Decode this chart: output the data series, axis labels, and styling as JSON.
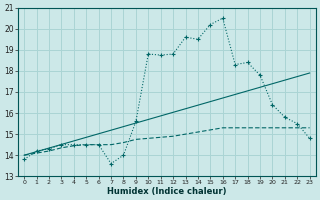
{
  "xlabel": "Humidex (Indice chaleur)",
  "bg_color": "#cce8e8",
  "grid_color": "#aad4d4",
  "line_color": "#006666",
  "xlim": [
    -0.5,
    23.5
  ],
  "ylim": [
    13,
    21
  ],
  "xticks": [
    0,
    1,
    2,
    3,
    4,
    5,
    6,
    7,
    8,
    9,
    10,
    11,
    12,
    13,
    14,
    15,
    16,
    17,
    18,
    19,
    20,
    21,
    22,
    23
  ],
  "yticks": [
    13,
    14,
    15,
    16,
    17,
    18,
    19,
    20,
    21
  ],
  "line1_x": [
    0,
    1,
    2,
    3,
    4,
    5,
    6,
    7,
    8,
    9,
    10,
    11,
    12,
    13,
    14,
    15,
    16,
    17,
    18,
    19,
    20,
    21,
    22,
    23
  ],
  "line1_y": [
    13.8,
    14.2,
    14.3,
    14.5,
    14.5,
    14.5,
    14.5,
    13.6,
    14.0,
    15.6,
    18.8,
    18.75,
    18.8,
    19.6,
    19.5,
    20.2,
    20.5,
    18.3,
    18.4,
    17.8,
    16.4,
    15.8,
    15.5,
    14.8
  ],
  "line2_x": [
    0,
    23
  ],
  "line2_y": [
    14.0,
    17.9
  ],
  "line3_x": [
    0,
    1,
    2,
    3,
    4,
    5,
    6,
    7,
    8,
    9,
    10,
    11,
    12,
    13,
    14,
    15,
    16,
    17,
    18,
    19,
    20,
    21,
    22,
    23
  ],
  "line3_y": [
    14.0,
    14.1,
    14.2,
    14.35,
    14.45,
    14.5,
    14.5,
    14.5,
    14.6,
    14.75,
    14.8,
    14.85,
    14.9,
    15.0,
    15.1,
    15.2,
    15.3,
    15.3,
    15.3,
    15.3,
    15.3,
    15.3,
    15.3,
    15.3
  ]
}
